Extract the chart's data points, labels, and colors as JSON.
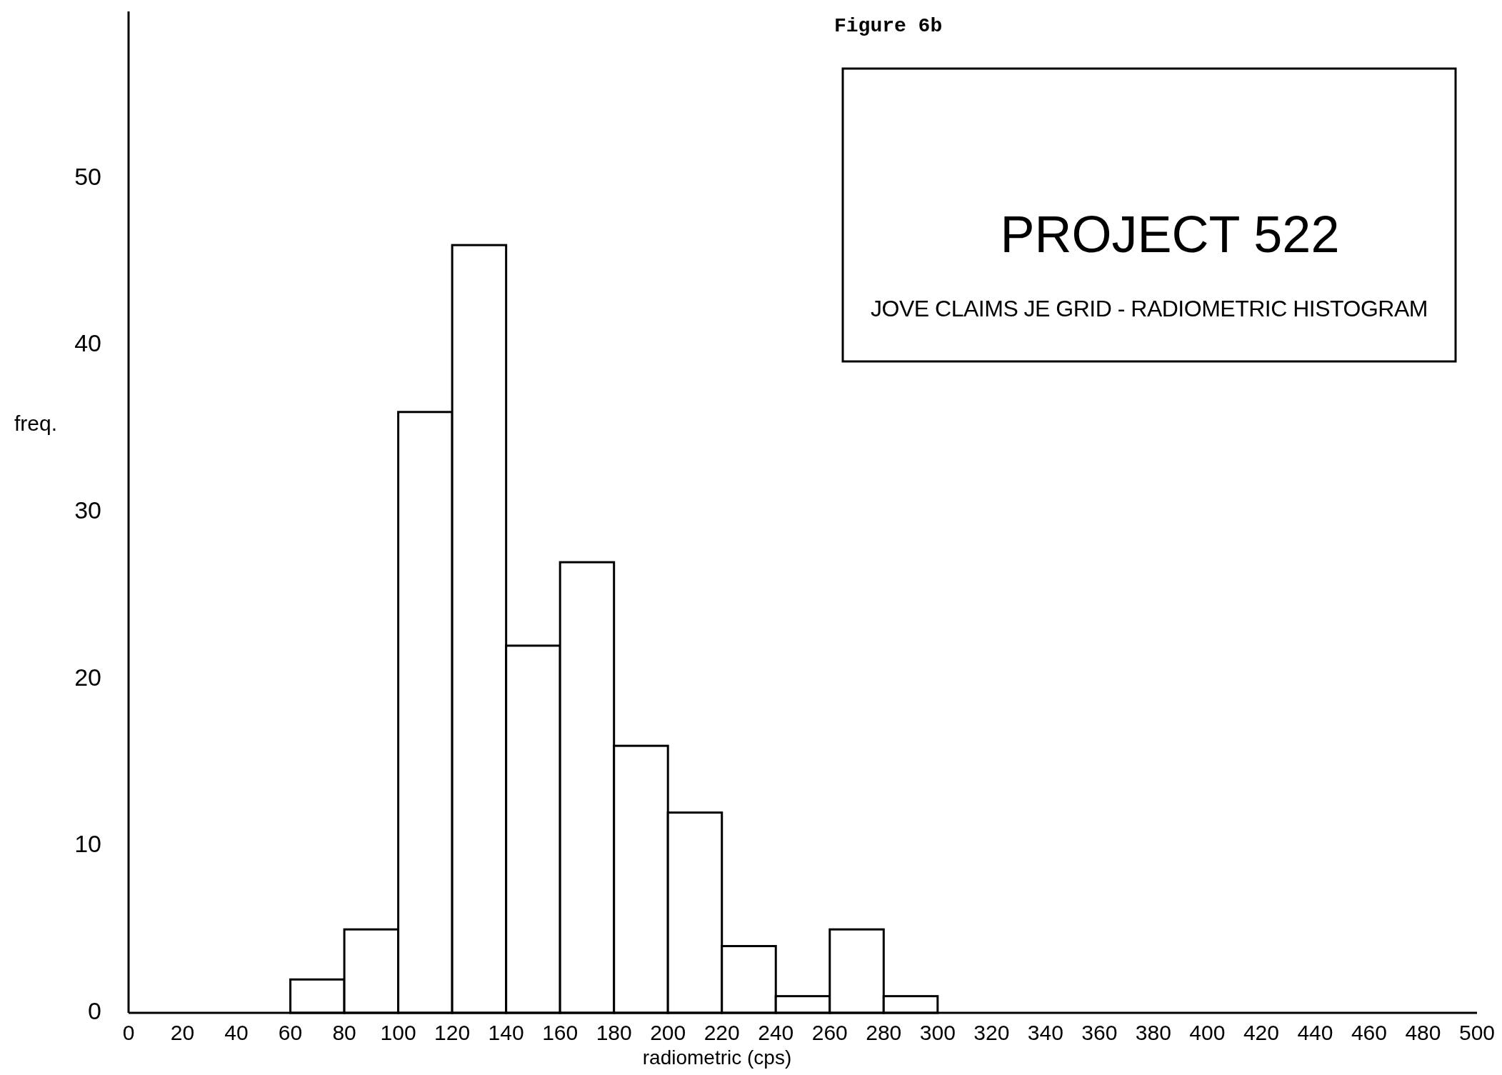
{
  "chart_data": {
    "type": "histogram",
    "title": "PROJECT 522",
    "subtitle": "JOVE CLAIMS  JE GRID - RADIOMETRIC HISTOGRAM",
    "annotations": [
      "Figure 6b"
    ],
    "xlabel": "radiometric  (cps)",
    "ylabel": "freq.",
    "bins": [
      0,
      20,
      40,
      60,
      80,
      100,
      120,
      140,
      160,
      180,
      200,
      220,
      240,
      260,
      280,
      300
    ],
    "values": [
      0,
      0,
      0,
      2,
      5,
      36,
      46,
      22,
      27,
      16,
      12,
      4,
      1,
      5,
      1
    ],
    "color": "#ffffff",
    "xlim": [
      0,
      500
    ],
    "xticks": [
      0,
      20,
      40,
      60,
      80,
      100,
      120,
      140,
      160,
      180,
      200,
      220,
      240,
      260,
      280,
      300,
      320,
      340,
      360,
      380,
      400,
      420,
      440,
      460,
      480,
      500
    ],
    "ylim": [
      0,
      60
    ],
    "yticks": [
      0,
      10,
      20,
      30,
      40,
      50
    ],
    "grid": false
  }
}
